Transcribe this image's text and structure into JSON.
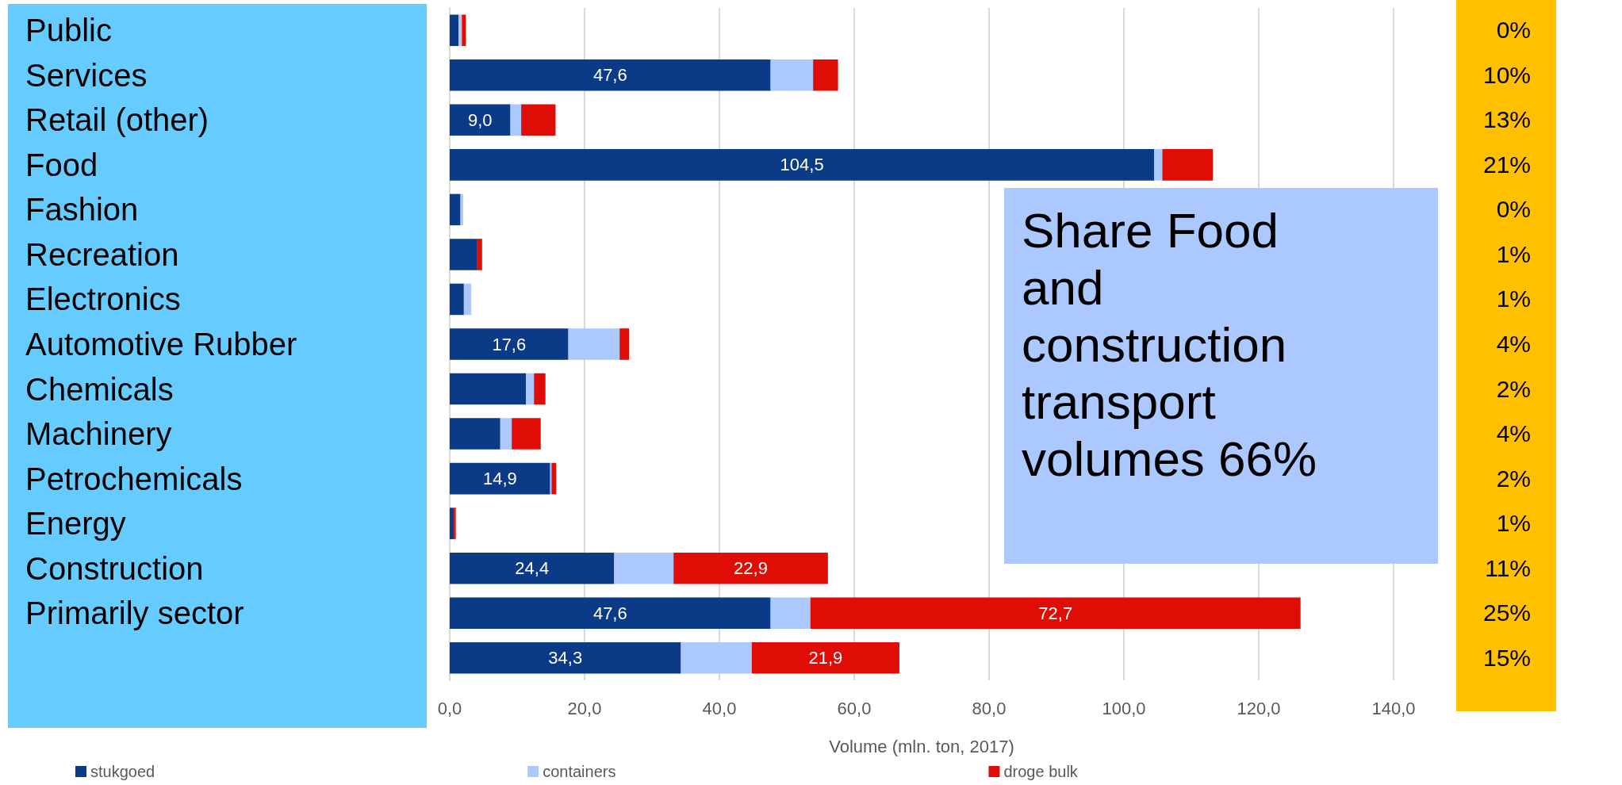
{
  "chart_data": {
    "type": "bar",
    "orientation": "horizontal",
    "stacked": true,
    "categories": [
      "Public",
      "Services",
      "Retail (other)",
      "Food",
      "Fashion",
      "Recreation",
      "Electronics",
      "Automotive Rubber",
      "Chemicals",
      "Machinery",
      "Petrochemicals",
      "Energy",
      "Construction",
      "Primarily sector",
      null
    ],
    "series": [
      {
        "name": "stukgoed",
        "color": "#0b3a87",
        "values": [
          1.3,
          47.6,
          9.0,
          104.5,
          1.6,
          4.1,
          2.1,
          17.6,
          11.3,
          7.5,
          14.9,
          0.6,
          24.4,
          47.6,
          34.3
        ],
        "value_labels": [
          null,
          "47,6",
          "9,0",
          "104,5",
          null,
          null,
          null,
          "17,6",
          null,
          null,
          "14,9",
          null,
          "24,4",
          "47,6",
          "34,3"
        ]
      },
      {
        "name": "containers",
        "color": "#abc9ff",
        "values": [
          0.5,
          6.3,
          1.6,
          1.2,
          0.4,
          null,
          1.1,
          7.6,
          1.2,
          1.7,
          0.2,
          0.0,
          8.8,
          5.9,
          10.5
        ]
      },
      {
        "name": "droge bulk",
        "color": "#e00d06",
        "values": [
          0.6,
          3.7,
          5.1,
          7.5,
          0.0,
          0.7,
          0.0,
          1.4,
          1.7,
          4.3,
          0.7,
          0.3,
          22.9,
          72.7,
          21.9
        ],
        "value_labels": [
          null,
          null,
          null,
          null,
          null,
          null,
          null,
          null,
          null,
          null,
          null,
          null,
          "22,9",
          "72,7",
          "21,9"
        ]
      }
    ],
    "xlabel": "Volume (mln. ton, 2017)",
    "xlim": [
      0,
      140
    ],
    "xticks": [
      {
        "value": 0,
        "label": "0,0"
      },
      {
        "value": 20,
        "label": "20,0"
      },
      {
        "value": 40,
        "label": "40,0"
      },
      {
        "value": 60,
        "label": "60,0"
      },
      {
        "value": 80,
        "label": "80,0"
      },
      {
        "value": 100,
        "label": "100,0"
      },
      {
        "value": 120,
        "label": "120,0"
      },
      {
        "value": 140,
        "label": "140,0"
      }
    ],
    "grid": "x",
    "legend": "bottom",
    "annotations": [
      "Share Food and construction transport volumes 66%",
      "0%",
      "10%",
      "13%",
      "21%",
      "0%",
      "1%",
      "1%",
      "4%",
      "2%",
      "4%",
      "2%",
      "1%",
      "11%",
      "25%",
      "15%"
    ]
  }
}
